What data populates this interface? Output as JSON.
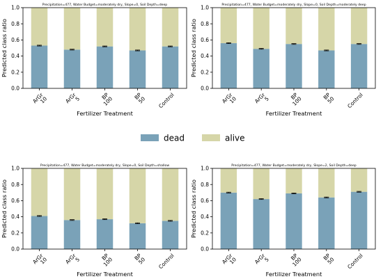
{
  "colors": {
    "dead": "#7aa2b8",
    "alive": "#d6d6a8"
  },
  "legend": {
    "items": [
      {
        "key": "dead",
        "label": "dead"
      },
      {
        "key": "alive",
        "label": "alive"
      }
    ],
    "placement": "center"
  },
  "chart_data": [
    {
      "type": "bar",
      "stacked": true,
      "title": "Precipitation=477, Water Budget=moderately dry, Slope=0, Soil Depth=deep",
      "xlabel": "Fertilizer Treatment",
      "ylabel": "Predicted class ratio",
      "ylim": [
        0,
        1
      ],
      "yticks": [
        "0.0",
        "0.2",
        "0.4",
        "0.6",
        "0.8",
        "1.0"
      ],
      "categories": [
        [
          "ArGr",
          "10"
        ],
        [
          "ArGr",
          "5"
        ],
        [
          "BP",
          "100"
        ],
        [
          "BP",
          "50"
        ],
        [
          "Control"
        ]
      ],
      "series": [
        {
          "name": "dead",
          "values": [
            0.53,
            0.48,
            0.52,
            0.47,
            0.52
          ],
          "err": [
            0.005,
            0.005,
            0.005,
            0.005,
            0.005
          ]
        },
        {
          "name": "alive",
          "values": [
            0.47,
            0.52,
            0.48,
            0.53,
            0.48
          ]
        }
      ]
    },
    {
      "type": "bar",
      "stacked": true,
      "title": "Precipitation=477, Water Budget=moderately dry, Slope=0, Soil Depth=moderately deep",
      "xlabel": "Fertilizer Treatment",
      "ylabel": "Predicted class ratio",
      "ylim": [
        0,
        1
      ],
      "yticks": [
        "0.0",
        "0.2",
        "0.4",
        "0.6",
        "0.8",
        "1.0"
      ],
      "categories": [
        [
          "ArGr",
          "10"
        ],
        [
          "ArGr",
          "5"
        ],
        [
          "BP",
          "100"
        ],
        [
          "BP",
          "50"
        ],
        [
          "Control"
        ]
      ],
      "series": [
        {
          "name": "dead",
          "values": [
            0.56,
            0.49,
            0.55,
            0.47,
            0.55
          ],
          "err": [
            0.005,
            0.005,
            0.005,
            0.005,
            0.005
          ]
        },
        {
          "name": "alive",
          "values": [
            0.44,
            0.51,
            0.45,
            0.53,
            0.45
          ]
        }
      ]
    },
    {
      "type": "bar",
      "stacked": true,
      "title": "Precipitation=477, Water Budget=moderately dry, Slope=0, Soil Depth=shallow",
      "xlabel": "Fertilizer Treatment",
      "ylabel": "Predicted class ratio",
      "ylim": [
        0,
        1
      ],
      "yticks": [
        "0.0",
        "0.2",
        "0.4",
        "0.6",
        "0.8",
        "1.0"
      ],
      "categories": [
        [
          "ArGr",
          "10"
        ],
        [
          "ArGr",
          "5"
        ],
        [
          "BP",
          "100"
        ],
        [
          "BP",
          "50"
        ],
        [
          "Control"
        ]
      ],
      "series": [
        {
          "name": "dead",
          "values": [
            0.41,
            0.36,
            0.37,
            0.32,
            0.35
          ],
          "err": [
            0.005,
            0.005,
            0.005,
            0.005,
            0.005
          ]
        },
        {
          "name": "alive",
          "values": [
            0.59,
            0.64,
            0.63,
            0.68,
            0.65
          ]
        }
      ]
    },
    {
      "type": "bar",
      "stacked": true,
      "title": "Precipitation=477, Water Budget=moderately dry, Slope=2, Soil Depth=deep",
      "xlabel": "Fertilizer Treatment",
      "ylabel": "Predicted class ratio",
      "ylim": [
        0,
        1
      ],
      "yticks": [
        "0.0",
        "0.2",
        "0.4",
        "0.6",
        "0.8",
        "1.0"
      ],
      "categories": [
        [
          "ArGr",
          "10"
        ],
        [
          "ArGr",
          "5"
        ],
        [
          "BP",
          "100"
        ],
        [
          "BP",
          "50"
        ],
        [
          "Control"
        ]
      ],
      "series": [
        {
          "name": "dead",
          "values": [
            0.7,
            0.62,
            0.69,
            0.64,
            0.71
          ],
          "err": [
            0.005,
            0.005,
            0.005,
            0.005,
            0.005
          ]
        },
        {
          "name": "alive",
          "values": [
            0.3,
            0.38,
            0.31,
            0.36,
            0.29
          ]
        }
      ]
    }
  ]
}
